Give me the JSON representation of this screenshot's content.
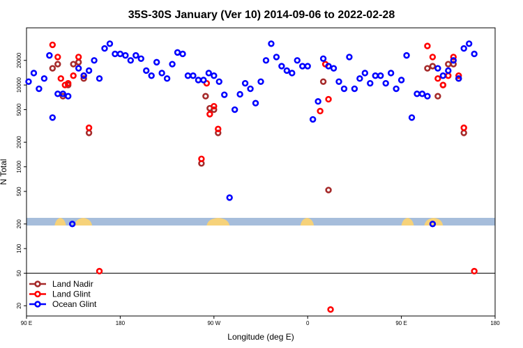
{
  "chart_data": {
    "type": "scatter",
    "title": "35S-30S January (Ver 10)   2014-09-06 to 2022-02-28",
    "xlabel": "Longitude (deg E)",
    "ylabel": "N Total",
    "y_scale": "log",
    "ylim": [
      15,
      50000
    ],
    "x_ticks": [
      "90 E",
      "180",
      "90 W",
      "0",
      "90 E",
      "180"
    ],
    "y_ticks": [
      "20",
      "50",
      "100",
      "200",
      "500",
      "1000",
      "2000",
      "5000",
      "10000",
      "20000"
    ],
    "y_tick_values": [
      20,
      50,
      100,
      200,
      500,
      1000,
      2000,
      5000,
      10000,
      20000
    ],
    "threshold_line": 50,
    "grid": false,
    "legend_position": "bottom-left",
    "colors": {
      "land_nadir": "#a52a2a",
      "land_glint": "#ff0000",
      "ocean_glint": "#0000ff",
      "ocean_band": "#a6bddb",
      "land_band": "#f6d27a"
    },
    "series": [
      {
        "name": "Land Nadir",
        "color": "#a52a2a",
        "points": [
          [
            115,
            16000
          ],
          [
            120,
            18000
          ],
          [
            125,
            7300
          ],
          [
            130,
            10000
          ],
          [
            135,
            18000
          ],
          [
            140,
            19000
          ],
          [
            145,
            12000
          ],
          [
            150,
            2600
          ],
          [
            258,
            1100
          ],
          [
            262,
            7300
          ],
          [
            266,
            5200
          ],
          [
            270,
            5000
          ],
          [
            274,
            2600
          ],
          [
            375,
            11000
          ],
          [
            380,
            520
          ],
          [
            475,
            16000
          ],
          [
            480,
            17000
          ],
          [
            485,
            7300
          ],
          [
            490,
            10000
          ],
          [
            495,
            18000
          ],
          [
            500,
            18000
          ],
          [
            505,
            12000
          ],
          [
            510,
            2600
          ]
        ]
      },
      {
        "name": "Land Glint",
        "color": "#ff0000",
        "points": [
          [
            115,
            31000
          ],
          [
            120,
            22000
          ],
          [
            123,
            12000
          ],
          [
            127,
            10000
          ],
          [
            130,
            10500
          ],
          [
            135,
            13000
          ],
          [
            140,
            22000
          ],
          [
            145,
            13000
          ],
          [
            150,
            3000
          ],
          [
            160,
            53
          ],
          [
            258,
            1250
          ],
          [
            263,
            10500
          ],
          [
            266,
            4400
          ],
          [
            270,
            5500
          ],
          [
            274,
            2900
          ],
          [
            372,
            4800
          ],
          [
            377,
            18000
          ],
          [
            380,
            6700
          ],
          [
            382,
            18
          ],
          [
            475,
            30000
          ],
          [
            480,
            22000
          ],
          [
            485,
            12000
          ],
          [
            490,
            10000
          ],
          [
            495,
            13000
          ],
          [
            500,
            22000
          ],
          [
            505,
            13000
          ],
          [
            510,
            3000
          ],
          [
            520,
            53
          ]
        ]
      },
      {
        "name": "Ocean Glint",
        "color": "#0000ff",
        "points": [
          [
            92,
            11000
          ],
          [
            97,
            14000
          ],
          [
            102,
            9000
          ],
          [
            107,
            12000
          ],
          [
            112,
            23000
          ],
          [
            115,
            4000
          ],
          [
            120,
            7800
          ],
          [
            125,
            7800
          ],
          [
            130,
            7300
          ],
          [
            134,
            200
          ],
          [
            140,
            16000
          ],
          [
            145,
            13000
          ],
          [
            150,
            15000
          ],
          [
            155,
            20000
          ],
          [
            160,
            12000
          ],
          [
            165,
            28000
          ],
          [
            170,
            32000
          ],
          [
            175,
            24000
          ],
          [
            180,
            24000
          ],
          [
            185,
            23000
          ],
          [
            190,
            20000
          ],
          [
            195,
            23000
          ],
          [
            200,
            21000
          ],
          [
            205,
            15000
          ],
          [
            210,
            13000
          ],
          [
            215,
            19000
          ],
          [
            220,
            14000
          ],
          [
            225,
            12000
          ],
          [
            230,
            18000
          ],
          [
            235,
            25000
          ],
          [
            240,
            24000
          ],
          [
            245,
            13000
          ],
          [
            250,
            13000
          ],
          [
            255,
            11500
          ],
          [
            260,
            11500
          ],
          [
            265,
            14000
          ],
          [
            270,
            13000
          ],
          [
            275,
            11000
          ],
          [
            280,
            7600
          ],
          [
            285,
            420
          ],
          [
            290,
            5000
          ],
          [
            295,
            7700
          ],
          [
            300,
            10500
          ],
          [
            305,
            9000
          ],
          [
            310,
            6000
          ],
          [
            315,
            11000
          ],
          [
            320,
            20000
          ],
          [
            325,
            32000
          ],
          [
            330,
            22000
          ],
          [
            335,
            17000
          ],
          [
            340,
            15000
          ],
          [
            345,
            14000
          ],
          [
            350,
            20000
          ],
          [
            355,
            17000
          ],
          [
            360,
            17000
          ],
          [
            365,
            3800
          ],
          [
            370,
            6300
          ],
          [
            375,
            21000
          ],
          [
            380,
            17000
          ],
          [
            385,
            16000
          ],
          [
            390,
            11000
          ],
          [
            395,
            9000
          ],
          [
            400,
            22000
          ],
          [
            405,
            9000
          ],
          [
            410,
            12000
          ],
          [
            415,
            14000
          ],
          [
            420,
            10500
          ],
          [
            425,
            13000
          ],
          [
            430,
            13000
          ],
          [
            435,
            10500
          ],
          [
            440,
            14000
          ],
          [
            445,
            9000
          ],
          [
            450,
            11500
          ],
          [
            455,
            23000
          ],
          [
            460,
            4000
          ],
          [
            465,
            7800
          ],
          [
            470,
            7800
          ],
          [
            475,
            7300
          ],
          [
            480,
            200
          ],
          [
            485,
            16000
          ],
          [
            490,
            13000
          ],
          [
            495,
            15000
          ],
          [
            500,
            20000
          ],
          [
            505,
            12000
          ],
          [
            510,
            28000
          ],
          [
            515,
            32000
          ],
          [
            520,
            24000
          ]
        ]
      }
    ]
  }
}
